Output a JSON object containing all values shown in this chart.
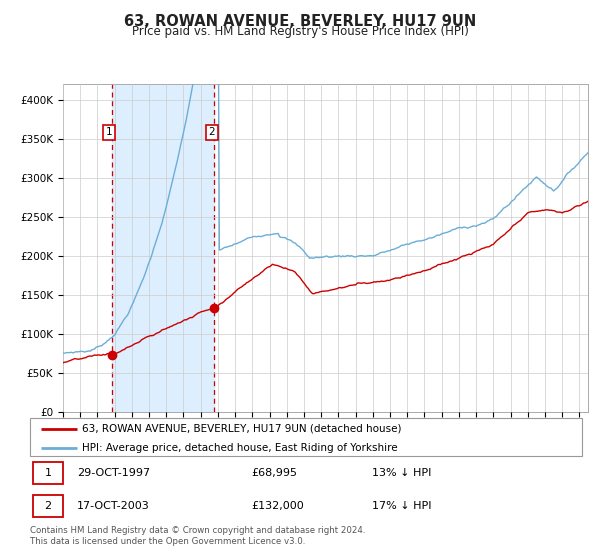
{
  "title": "63, ROWAN AVENUE, BEVERLEY, HU17 9UN",
  "subtitle": "Price paid vs. HM Land Registry's House Price Index (HPI)",
  "background_color": "#ffffff",
  "plot_bg_color": "#ffffff",
  "grid_color": "#cccccc",
  "hpi_line_color": "#6baed6",
  "price_line_color": "#cc0000",
  "shade_color": "#ddeeff",
  "ylim": [
    0,
    420000
  ],
  "yticks": [
    0,
    50000,
    100000,
    150000,
    200000,
    250000,
    300000,
    350000,
    400000
  ],
  "ytick_labels": [
    "£0",
    "£50K",
    "£100K",
    "£150K",
    "£200K",
    "£250K",
    "£300K",
    "£350K",
    "£400K"
  ],
  "sale1_date": 1997.83,
  "sale1_price": 68995,
  "sale2_date": 2003.79,
  "sale2_price": 132000,
  "legend_line1": "63, ROWAN AVENUE, BEVERLEY, HU17 9UN (detached house)",
  "legend_line2": "HPI: Average price, detached house, East Riding of Yorkshire",
  "table_row1_num": "1",
  "table_row1_date": "29-OCT-1997",
  "table_row1_price": "£68,995",
  "table_row1_hpi": "13% ↓ HPI",
  "table_row2_num": "2",
  "table_row2_date": "17-OCT-2003",
  "table_row2_price": "£132,000",
  "table_row2_hpi": "17% ↓ HPI",
  "footnote": "Contains HM Land Registry data © Crown copyright and database right 2024.\nThis data is licensed under the Open Government Licence v3.0.",
  "xmin": 1995.0,
  "xmax": 2025.5
}
